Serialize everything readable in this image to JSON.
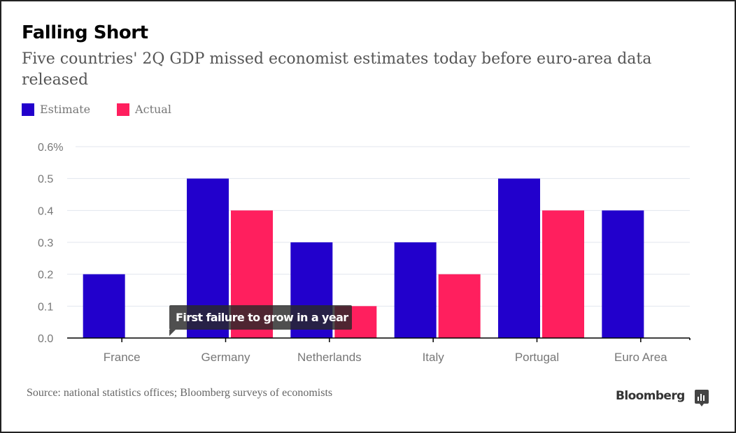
{
  "header": {
    "title": "Falling Short",
    "subtitle": "Five countries' 2Q GDP missed economist estimates today before euro-area data released"
  },
  "legend": [
    {
      "label": "Estimate",
      "color": "#2200cc"
    },
    {
      "label": "Actual",
      "color": "#ff1f5e"
    }
  ],
  "annotation": "First failure to grow in a year",
  "footer": {
    "source": "Source: national statistics offices; Bloomberg surveys of economists",
    "brand": "Bloomberg"
  },
  "chart_data": {
    "type": "bar",
    "title": "Falling Short",
    "subtitle": "Five countries' 2Q GDP missed economist estimates today before euro-area data released",
    "categories": [
      "France",
      "Germany",
      "Netherlands",
      "Italy",
      "Portugal",
      "Euro Area"
    ],
    "series": [
      {
        "name": "Estimate",
        "color": "#2200cc",
        "values": [
          0.2,
          0.5,
          0.3,
          0.3,
          0.5,
          0.4
        ]
      },
      {
        "name": "Actual",
        "color": "#ff1f5e",
        "values": [
          0.0,
          0.4,
          0.1,
          0.2,
          0.4,
          null
        ]
      }
    ],
    "xlabel": "",
    "ylabel": "",
    "ylim": [
      0,
      0.6
    ],
    "yticks": [
      0,
      0.1,
      0.2,
      0.3,
      0.4,
      0.5,
      0.6
    ],
    "ytick_labels": [
      "0.0",
      "0.1",
      "0.2",
      "0.3",
      "0.4",
      "0.5",
      "0.6%"
    ],
    "grid": true,
    "legend_position": "top-left",
    "annotations": [
      {
        "text": "First failure to grow in a year",
        "category": "Germany",
        "note": "tooltip near baseline"
      }
    ]
  }
}
